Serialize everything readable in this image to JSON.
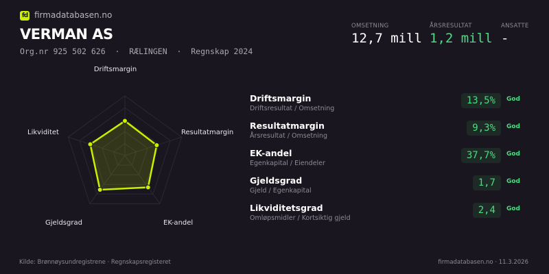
{
  "brand": {
    "logo_text": "fd",
    "site": "firmadatabasen.no"
  },
  "company": {
    "name": "VERMAN AS",
    "subtitle": "Org.nr 925 502 626  ·  RÆLINGEN  ·  Regnskap 2024"
  },
  "kpis": [
    {
      "label": "OMSETNING",
      "value": "12,7 mill",
      "color": "#ffffff"
    },
    {
      "label": "ÅRSRESULTAT",
      "value": "1,2 mill",
      "color": "#4ade80"
    },
    {
      "label": "ANSATTE",
      "value": "-",
      "color": "#ffffff"
    }
  ],
  "chart_data": {
    "type": "radar",
    "axes": [
      "Driftsmargin",
      "Resultatmargin",
      "EK-andel",
      "Gjeldsgrad",
      "Likviditet"
    ],
    "values": [
      0.58,
      0.56,
      0.66,
      0.71,
      0.61
    ],
    "range": [
      0,
      1
    ],
    "rings": 5,
    "color": "#c8f000"
  },
  "metrics": [
    {
      "name": "Driftsmargin",
      "desc": "Driftsresultat / Omsetning",
      "value": "13,5%",
      "status": "God"
    },
    {
      "name": "Resultatmargin",
      "desc": "Årsresultat / Omsetning",
      "value": "9,3%",
      "status": "God"
    },
    {
      "name": "EK-andel",
      "desc": "Egenkapital / Eiendeler",
      "value": "37,7%",
      "status": "God"
    },
    {
      "name": "Gjeldsgrad",
      "desc": "Gjeld / Egenkapital",
      "value": "1,7",
      "status": "God"
    },
    {
      "name": "Likviditetsgrad",
      "desc": "Omløpsmidler / Kortsiktig gjeld",
      "value": "2,4",
      "status": "God"
    }
  ],
  "footer": {
    "source": "Kilde: Brønnøysundregistrene · Regnskapsregisteret",
    "site_date": "firmadatabasen.no · 11.3.2026"
  }
}
